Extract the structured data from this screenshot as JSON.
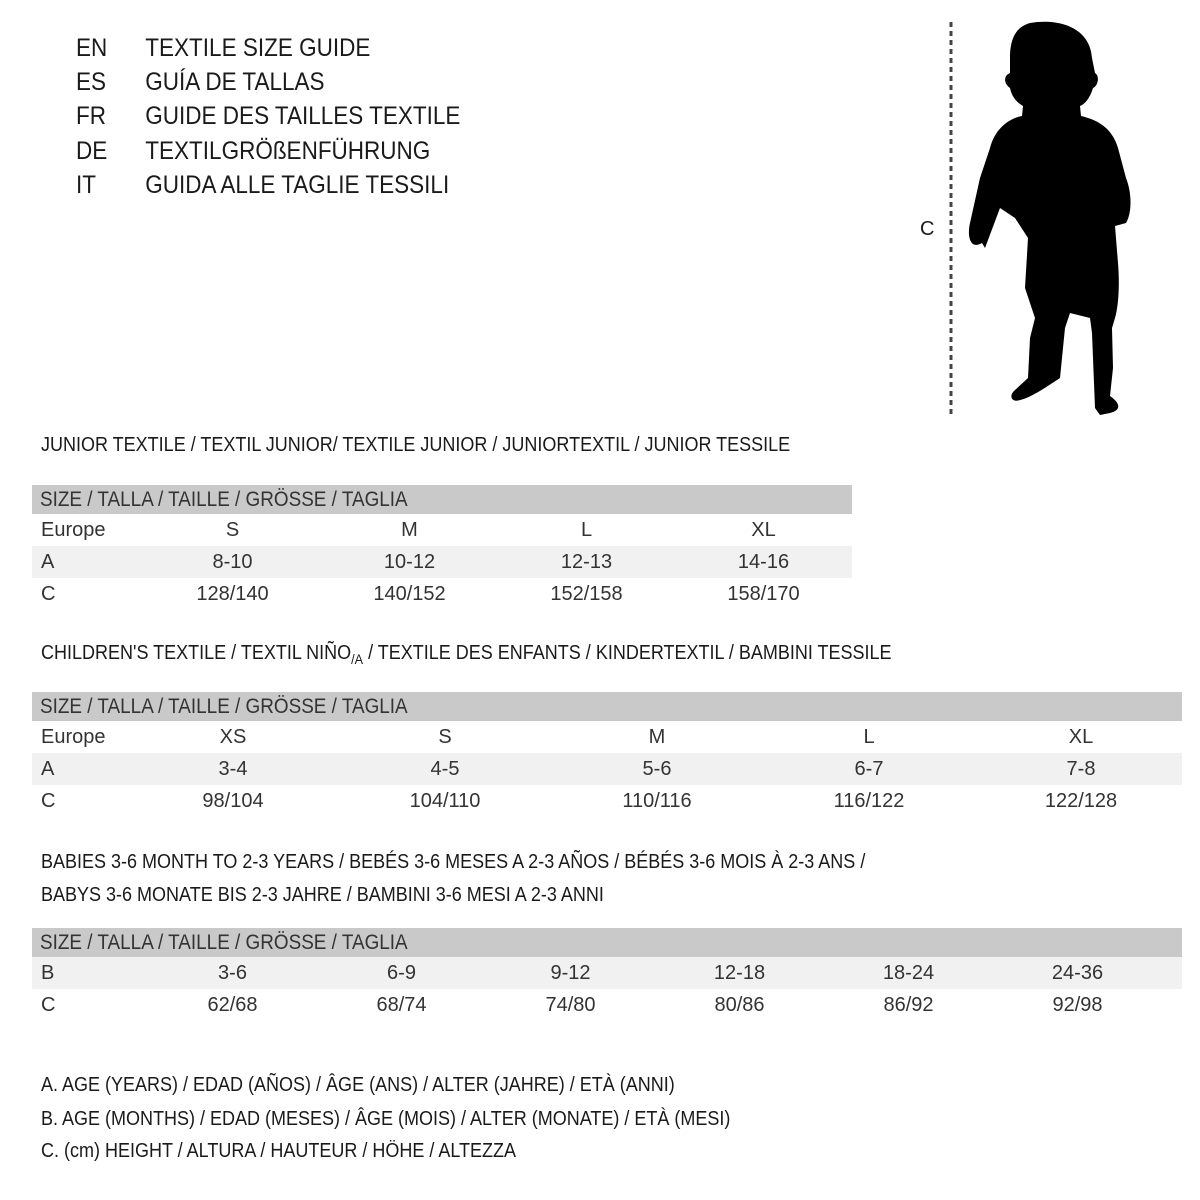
{
  "languages": [
    {
      "code": "EN",
      "title": "TEXTILE SIZE GUIDE"
    },
    {
      "code": "ES",
      "title": "GUÍA DE TALLAS"
    },
    {
      "code": "FR",
      "title": "GUIDE DES TAILLES TEXTILE"
    },
    {
      "code": "DE",
      "title": "TEXTILGRÖßENFÜHRUNG"
    },
    {
      "code": "IT",
      "title": "GUIDA ALLE TAGLIE TESSILI"
    }
  ],
  "figure": {
    "measure_label": "C"
  },
  "junior": {
    "title": "JUNIOR TEXTILE / TEXTIL JUNIOR/ TEXTILE JUNIOR / JUNIORTEXTIL / JUNIOR TESSILE",
    "header": "SIZE / TALLA / TAILLE / GRÖSSE / TAGLIA",
    "rows": [
      {
        "label": "Europe",
        "values": [
          "S",
          "M",
          "L",
          "XL"
        ]
      },
      {
        "label": "A",
        "values": [
          "8-10",
          "10-12",
          "12-13",
          "14-16"
        ]
      },
      {
        "label": "C",
        "values": [
          "128/140",
          "140/152",
          "152/158",
          "158/170"
        ]
      }
    ]
  },
  "children": {
    "title": "CHILDREN'S TEXTILE / TEXTIL NIÑO",
    "title_sub": "/A",
    "title_rest": " / TEXTILE DES ENFANTS / KINDERTEXTIL / BAMBINI TESSILE",
    "header": "SIZE / TALLA / TAILLE / GRÖSSE / TAGLIA",
    "rows": [
      {
        "label": "Europe",
        "values": [
          "XS",
          "S",
          "M",
          "L",
          "XL"
        ]
      },
      {
        "label": "A",
        "values": [
          "3-4",
          "4-5",
          "5-6",
          "6-7",
          "7-8"
        ]
      },
      {
        "label": "C",
        "values": [
          "98/104",
          "104/110",
          "110/116",
          "116/122",
          "122/128"
        ]
      }
    ]
  },
  "babies": {
    "title_line1": "BABIES 3-6 MONTH TO 2-3 YEARS / BEBÉS 3-6 MESES A 2-3 AÑOS / BÉBÉS 3-6 MOIS À 2-3 ANS /",
    "title_line2": "BABYS 3-6 MONATE BIS 2-3 JAHRE / BAMBINI 3-6 MESI A 2-3 ANNI",
    "header": "SIZE / TALLA / TAILLE / GRÖSSE / TAGLIA",
    "rows": [
      {
        "label": "B",
        "values": [
          "3-6",
          "6-9",
          "9-12",
          "12-18",
          "18-24",
          "24-36"
        ]
      },
      {
        "label": "C",
        "values": [
          "62/68",
          "68/74",
          "74/80",
          "80/86",
          "86/92",
          "92/98"
        ]
      }
    ]
  },
  "legend": [
    "A. AGE (YEARS) / EDAD (AÑOS) / ÂGE (ANS) / ALTER (JAHRE) / ETÀ (ANNI)",
    "B. AGE (MONTHS) / EDAD (MESES) / ÂGE (MOIS) / ALTER (MONATE) / ETÀ (MESI)",
    "C. (cm) HEIGHT / ALTURA / HAUTEUR / HÖHE / ALTEZZA"
  ]
}
